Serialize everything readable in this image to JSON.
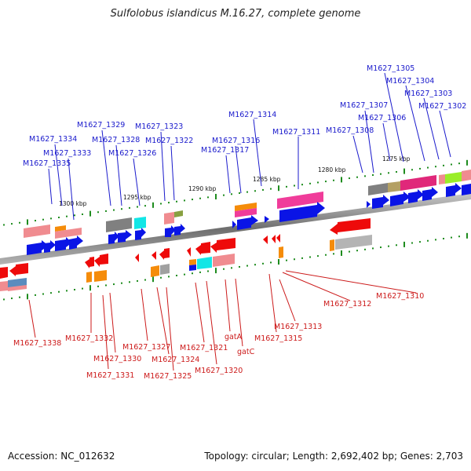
{
  "map": {
    "title": "Sulfolobus islandicus M.16.27, complete genome",
    "accession": "Accession: NC_012632",
    "summary": "Topology: circular; Length: 2,692,402 bp; Genes: 2,703"
  },
  "scale_labels": [
    "1300 kbp",
    "1295 kbp",
    "1290 kbp",
    "1285 kbp",
    "1280 kbp",
    "1275 kbp"
  ],
  "top_strand_labels": [
    "M1627_1305",
    "M1627_1304",
    "M1627_1303",
    "M1627_1302",
    "M1627_1307",
    "M1627_1306",
    "M1627_1314",
    "M1627_1311",
    "M1627_1308",
    "M1627_1329",
    "M1627_1323",
    "M1627_1334",
    "M1627_1328",
    "M1627_1322",
    "M1627_1316",
    "M1627_1333",
    "M1627_1326",
    "M1627_1317",
    "M1627_1335"
  ],
  "bottom_strand_labels": [
    "M1627_1310",
    "M1627_1312",
    "M1627_1313",
    "M1627_1315",
    "M1627_1338",
    "M1627_1332",
    "M1627_1327",
    "M1627_1321",
    "gatA",
    "M1627_1330",
    "M1627_1324",
    "gatC",
    "M1627_1320",
    "M1627_1331",
    "M1627_1325"
  ],
  "colors": {
    "gene_blue": "#0a14e6",
    "gene_red": "#ee0a0a",
    "pink": "#f03c9a",
    "magenta": "#e0287a",
    "salmon": "#f08c90",
    "orange": "#f58c0a",
    "grey": "#909090",
    "cyan": "#12e6e6",
    "lime": "#9aee28",
    "olive": "#b4a064",
    "steel": "#5a8cbe",
    "tick_green": "#1e8c1e"
  }
}
